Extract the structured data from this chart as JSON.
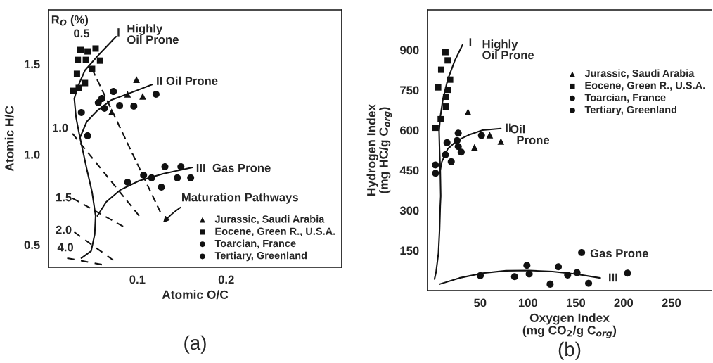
{
  "chart_data": [
    {
      "type": "scatter",
      "xlabel": "Atomic O/C",
      "ylabel": "Atomic H/C",
      "xlim": [
        0,
        0.33
      ],
      "ylim": [
        0.375,
        1.8
      ],
      "xticks": [
        0.1,
        0.2
      ],
      "yticks": [
        0.5,
        {
          "value": 1.0,
          "label": "1.0"
        },
        1.5
      ],
      "grid": false,
      "legend": "bottom right",
      "series": [
        {
          "name": "Jurassic, Saudi Arabia",
          "marker": "triangle",
          "color": "#111111",
          "x": [
            0.099,
            0.089,
            0.106,
            0.071
          ],
          "values": [
            1.414,
            1.333,
            1.321,
            1.235
          ]
        },
        {
          "name": "Eocene, Green R., U.S.A.",
          "marker": "square",
          "color": "#111111",
          "x": [
            0.036,
            0.044,
            0.053,
            0.033,
            0.042,
            0.058,
            0.032,
            0.049,
            0.041,
            0.034,
            0.028
          ],
          "values": [
            1.578,
            1.57,
            1.586,
            1.523,
            1.523,
            1.519,
            1.446,
            1.473,
            1.395,
            1.368,
            1.352
          ]
        },
        {
          "name": "Toarcian, France",
          "marker": "circle",
          "color": "#111111",
          "x": [
            0.073,
            0.121,
            0.06,
            0.056,
            0.063,
            0.08,
            0.096,
            0.037,
            0.044
          ],
          "values": [
            1.348,
            1.333,
            1.309,
            1.286,
            1.255,
            1.27,
            1.267,
            1.232,
            1.103
          ]
        },
        {
          "name": "Tertiary, Greenland",
          "marker": "circle",
          "color": "#111111",
          "x": [
            0.089,
            0.107,
            0.116,
            0.131,
            0.149,
            0.127,
            0.145,
            0.16
          ],
          "values": [
            0.846,
            0.885,
            0.87,
            0.932,
            0.932,
            0.819,
            0.87,
            0.87
          ]
        },
        {
          "type": "line",
          "line_style": "solid",
          "color": "#111111",
          "x": [
            0.076,
            0.057,
            0.041,
            0.033,
            0.029,
            0.031,
            0.035,
            0.043,
            0.049,
            0.053,
            0.052,
            0.048,
            0.037
          ],
          "values": [
            1.652,
            1.554,
            1.465,
            1.375,
            1.309,
            1.204,
            1.103,
            0.92,
            0.792,
            0.66,
            0.558,
            0.465,
            0.426
          ]
        },
        {
          "type": "line",
          "line_style": "solid",
          "color": "#111111",
          "x": [
            0.117,
            0.092,
            0.071,
            0.055,
            0.043,
            0.035
          ],
          "values": [
            1.387,
            1.34,
            1.302,
            1.243,
            1.181,
            1.088
          ]
        },
        {
          "type": "line",
          "line_style": "solid",
          "color": "#111111",
          "x": [
            0.162,
            0.129,
            0.102,
            0.081,
            0.065,
            0.055
          ],
          "values": [
            0.928,
            0.893,
            0.854,
            0.804,
            0.737,
            0.66
          ]
        },
        {
          "type": "line",
          "line_style": "dashed",
          "color": "#111111",
          "x": [
            0.049,
            0.126
          ],
          "values": [
            1.473,
            0.679
          ]
        },
        {
          "type": "line",
          "line_style": "dashed",
          "color": "#111111",
          "x": [
            0.027,
            0.102
          ],
          "values": [
            1.115,
            0.66
          ]
        },
        {
          "type": "line",
          "line_style": "dashed",
          "color": "#111111",
          "x": [
            0.027,
            0.084
          ],
          "values": [
            0.757,
            0.601
          ]
        },
        {
          "type": "line",
          "line_style": "dashed",
          "color": "#111111",
          "x": [
            0.029,
            0.073
          ],
          "values": [
            0.57,
            0.414
          ]
        },
        {
          "type": "line",
          "line_style": "dashed",
          "color": "#111111",
          "x": [
            0.021,
            0.06
          ],
          "values": [
            0.426,
            0.39
          ]
        }
      ],
      "annotations": [
        "R$_{O}$ (%)",
        "0.5",
        "1.0",
        "1.5",
        "2.0",
        "4.0",
        "I",
        "Highly\nOil Prone",
        "II Oil Prone",
        "III  Gas Prone",
        "Maturation Pathways",
        "(a)"
      ]
    },
    {
      "type": "scatter",
      "xlabel": "Oxygen Index\n(mg CO$_{2}$/g C$_{org}$)",
      "ylabel": "Hydrogen Index\n(mg HC/g C$_{org}$)",
      "xlim": [
        -5,
        292
      ],
      "ylim": [
        0,
        1050
      ],
      "xticks": [
        50,
        100,
        150,
        200,
        250
      ],
      "yticks": [
        150,
        300,
        450,
        600,
        750,
        900
      ],
      "grid": false,
      "legend": "top right",
      "series": [
        {
          "name": "Jurassic, Saudi Arabia",
          "marker": "triangle",
          "color": "#111111",
          "x": [
            37.3,
            44.1,
            60.0,
            71.7
          ],
          "values": [
            668,
            536,
            582,
            558
          ]
        },
        {
          "name": "Eocene, Green R., U.S.A.",
          "marker": "square",
          "color": "#111111",
          "x": [
            13.7,
            16.1,
            9.3,
            18.6,
            6.1,
            16.6,
            14.4,
            14.2,
            8.8,
            3.4
          ],
          "values": [
            892,
            861,
            826,
            789,
            760,
            751,
            725,
            688,
            641,
            609
          ]
        },
        {
          "name": "Toarcian, France",
          "marker": "circle",
          "color": "#111111",
          "x": [
            27.1,
            15.4,
            25.9,
            27.1,
            30.2,
            13.7,
            19.8,
            3.2,
            3.4,
            51.4
          ],
          "values": [
            589,
            553,
            561,
            539,
            518,
            508,
            482,
            470,
            439,
            580
          ]
        },
        {
          "name": "Tertiary, Greenland",
          "marker": "circle",
          "color": "#111111",
          "x": [
            50.2,
            86.0,
            98.9,
            101.3,
            123.2,
            131.8,
            141.5,
            151.3,
            163.4,
            156.1,
            204.1
          ],
          "values": [
            56,
            52,
            94,
            62,
            24,
            89,
            58,
            67,
            27,
            142,
            65
          ]
        },
        {
          "type": "line",
          "line_style": "solid",
          "color": "#111111",
          "x": [
            31.6,
            23.4,
            16.1,
            11.2,
            8.3,
            7.1,
            7.6,
            8.3,
            8.8,
            8.3,
            7.6,
            6.4,
            3.9,
            2.3
          ],
          "values": [
            919,
            859,
            789,
            718,
            648,
            596,
            526,
            455,
            354,
            315,
            227,
            139,
            69,
            43
          ]
        },
        {
          "type": "line",
          "line_style": "solid",
          "color": "#111111",
          "x": [
            71.7,
            52.7,
            38.1,
            25.9,
            16.1,
            10.0,
            7.6
          ],
          "values": [
            606,
            600,
            582,
            561,
            530,
            482,
            438
          ]
        },
        {
          "type": "line",
          "line_style": "solid",
          "color": "#111111",
          "x": [
            7.6,
            28.3,
            52.7,
            77.0,
            101.3,
            125.7,
            150.0,
            175.6
          ],
          "values": [
            24,
            47,
            65,
            74,
            75,
            71,
            62,
            47
          ]
        }
      ],
      "annotations": [
        "I",
        "Highly\nOil Prone",
        "II",
        "Oil\n  Prone",
        "Gas Prone",
        "III",
        "(b)"
      ]
    }
  ]
}
